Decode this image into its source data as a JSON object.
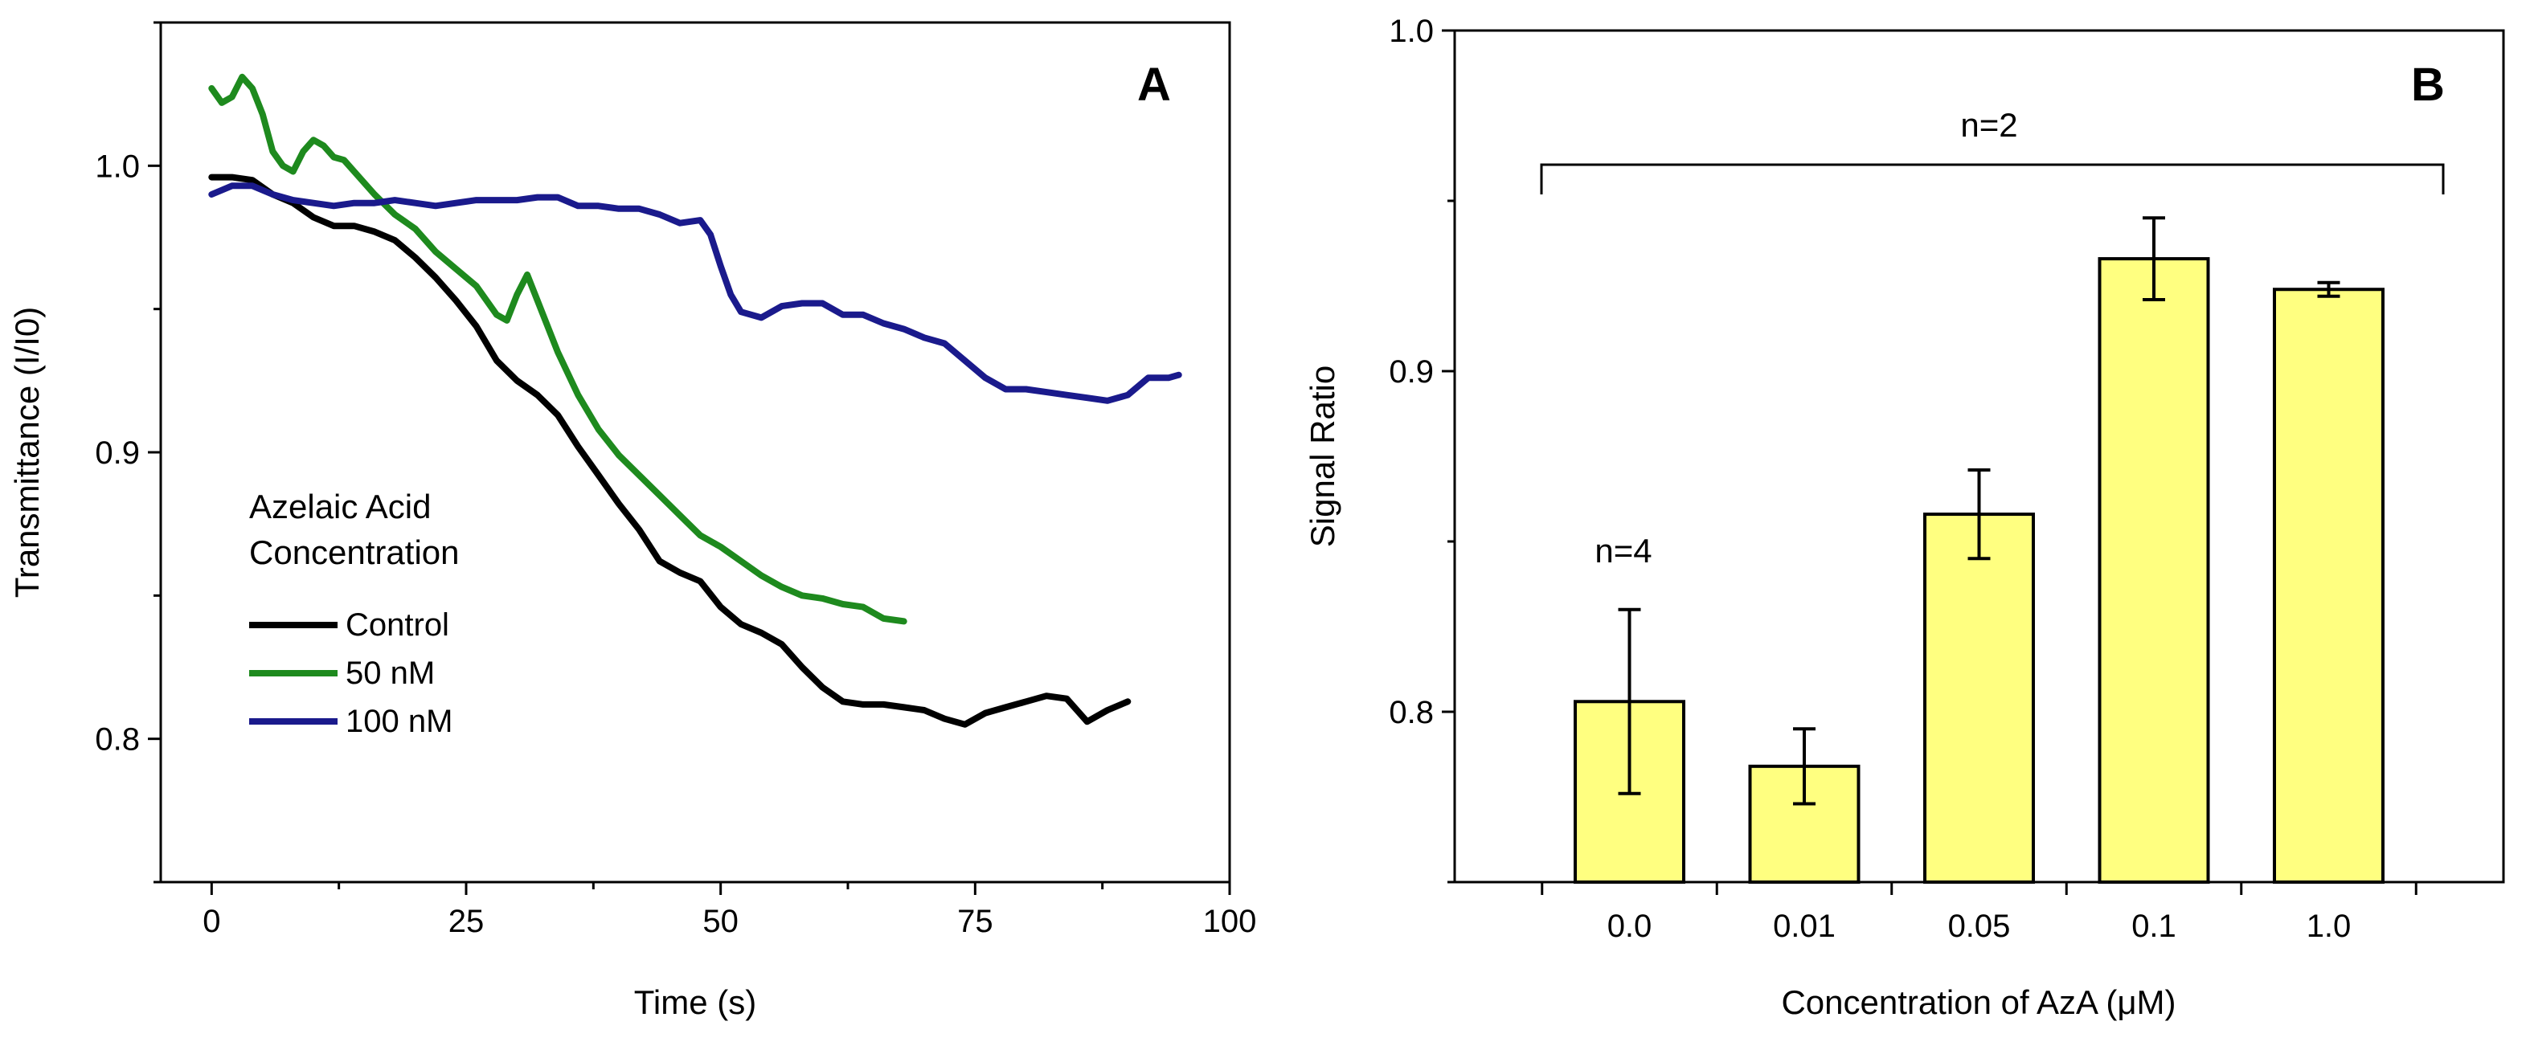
{
  "chart_data": [
    {
      "type": "line",
      "panel_label": "A",
      "title": "",
      "xlabel": "Time (s)",
      "ylabel": "Transmittance (I/I0)",
      "xlim": [
        -5,
        100
      ],
      "ylim": [
        0.75,
        1.05
      ],
      "xticks": [
        0,
        25,
        50,
        75,
        100
      ],
      "xtick_labels": [
        "0",
        "25",
        "50",
        "75",
        "100"
      ],
      "yticks": [
        0.8,
        0.9,
        1.0
      ],
      "ytick_labels": [
        "0.8",
        "0.9",
        "1.0"
      ],
      "grid": false,
      "legend": {
        "position": "center-left",
        "title_lines": [
          "Azelaic Acid",
          "Concentration"
        ],
        "entries": [
          "Control",
          "50 nM",
          "100 nM"
        ]
      },
      "series": [
        {
          "name": "Control",
          "color": "#000000",
          "points": [
            [
              0,
              0.996
            ],
            [
              2,
              0.996
            ],
            [
              4,
              0.995
            ],
            [
              6,
              0.99
            ],
            [
              8,
              0.987
            ],
            [
              10,
              0.982
            ],
            [
              12,
              0.979
            ],
            [
              14,
              0.979
            ],
            [
              16,
              0.977
            ],
            [
              18,
              0.974
            ],
            [
              20,
              0.968
            ],
            [
              22,
              0.961
            ],
            [
              24,
              0.953
            ],
            [
              26,
              0.944
            ],
            [
              28,
              0.932
            ],
            [
              30,
              0.925
            ],
            [
              32,
              0.92
            ],
            [
              34,
              0.913
            ],
            [
              36,
              0.902
            ],
            [
              38,
              0.892
            ],
            [
              40,
              0.882
            ],
            [
              42,
              0.873
            ],
            [
              44,
              0.862
            ],
            [
              46,
              0.858
            ],
            [
              48,
              0.855
            ],
            [
              50,
              0.846
            ],
            [
              52,
              0.84
            ],
            [
              54,
              0.837
            ],
            [
              56,
              0.833
            ],
            [
              58,
              0.825
            ],
            [
              60,
              0.818
            ],
            [
              62,
              0.813
            ],
            [
              64,
              0.812
            ],
            [
              66,
              0.812
            ],
            [
              68,
              0.811
            ],
            [
              70,
              0.81
            ],
            [
              72,
              0.807
            ],
            [
              74,
              0.805
            ],
            [
              76,
              0.809
            ],
            [
              78,
              0.811
            ],
            [
              80,
              0.813
            ],
            [
              82,
              0.815
            ],
            [
              84,
              0.814
            ],
            [
              86,
              0.806
            ],
            [
              88,
              0.81
            ],
            [
              90,
              0.813
            ]
          ]
        },
        {
          "name": "50 nM",
          "color": "#1e8a1e",
          "points": [
            [
              0,
              1.027
            ],
            [
              1,
              1.022
            ],
            [
              2,
              1.024
            ],
            [
              3,
              1.031
            ],
            [
              4,
              1.027
            ],
            [
              5,
              1.018
            ],
            [
              6,
              1.005
            ],
            [
              7,
              1.0
            ],
            [
              8,
              0.998
            ],
            [
              9,
              1.005
            ],
            [
              10,
              1.009
            ],
            [
              11,
              1.007
            ],
            [
              12,
              1.003
            ],
            [
              13,
              1.002
            ],
            [
              14,
              0.998
            ],
            [
              16,
              0.99
            ],
            [
              18,
              0.983
            ],
            [
              20,
              0.978
            ],
            [
              22,
              0.97
            ],
            [
              24,
              0.964
            ],
            [
              26,
              0.958
            ],
            [
              28,
              0.948
            ],
            [
              29,
              0.946
            ],
            [
              30,
              0.955
            ],
            [
              31,
              0.962
            ],
            [
              32,
              0.953
            ],
            [
              34,
              0.935
            ],
            [
              36,
              0.92
            ],
            [
              38,
              0.908
            ],
            [
              40,
              0.899
            ],
            [
              42,
              0.892
            ],
            [
              44,
              0.885
            ],
            [
              46,
              0.878
            ],
            [
              48,
              0.871
            ],
            [
              50,
              0.867
            ],
            [
              52,
              0.862
            ],
            [
              54,
              0.857
            ],
            [
              56,
              0.853
            ],
            [
              58,
              0.85
            ],
            [
              60,
              0.849
            ],
            [
              62,
              0.847
            ],
            [
              64,
              0.846
            ],
            [
              66,
              0.842
            ],
            [
              68,
              0.841
            ]
          ]
        },
        {
          "name": "100 nM",
          "color": "#1a1a8c",
          "points": [
            [
              0,
              0.99
            ],
            [
              2,
              0.993
            ],
            [
              4,
              0.993
            ],
            [
              6,
              0.99
            ],
            [
              8,
              0.988
            ],
            [
              10,
              0.987
            ],
            [
              12,
              0.986
            ],
            [
              14,
              0.987
            ],
            [
              16,
              0.987
            ],
            [
              18,
              0.988
            ],
            [
              20,
              0.987
            ],
            [
              22,
              0.986
            ],
            [
              24,
              0.987
            ],
            [
              26,
              0.988
            ],
            [
              28,
              0.988
            ],
            [
              30,
              0.988
            ],
            [
              32,
              0.989
            ],
            [
              34,
              0.989
            ],
            [
              36,
              0.986
            ],
            [
              38,
              0.986
            ],
            [
              40,
              0.985
            ],
            [
              42,
              0.985
            ],
            [
              44,
              0.983
            ],
            [
              46,
              0.98
            ],
            [
              48,
              0.981
            ],
            [
              49,
              0.976
            ],
            [
              50,
              0.965
            ],
            [
              51,
              0.955
            ],
            [
              52,
              0.949
            ],
            [
              54,
              0.947
            ],
            [
              56,
              0.951
            ],
            [
              58,
              0.952
            ],
            [
              60,
              0.952
            ],
            [
              62,
              0.948
            ],
            [
              64,
              0.948
            ],
            [
              66,
              0.945
            ],
            [
              68,
              0.943
            ],
            [
              70,
              0.94
            ],
            [
              72,
              0.938
            ],
            [
              74,
              0.932
            ],
            [
              76,
              0.926
            ],
            [
              78,
              0.922
            ],
            [
              80,
              0.922
            ],
            [
              82,
              0.921
            ],
            [
              84,
              0.92
            ],
            [
              86,
              0.919
            ],
            [
              88,
              0.918
            ],
            [
              90,
              0.92
            ],
            [
              92,
              0.926
            ],
            [
              94,
              0.926
            ],
            [
              95,
              0.927
            ]
          ]
        }
      ]
    },
    {
      "type": "bar",
      "panel_label": "B",
      "title": "",
      "xlabel": "Concentration of AzA (μM)",
      "ylabel": "Signal Ratio",
      "categories": [
        "0.0",
        "0.01",
        "0.05",
        "0.1",
        "1.0"
      ],
      "values": [
        0.803,
        0.784,
        0.858,
        0.933,
        0.924
      ],
      "errors": [
        0.027,
        0.011,
        0.013,
        0.012,
        0.002
      ],
      "bar_color": "#ffff80",
      "ylim": [
        0.75,
        1.0
      ],
      "yticks": [
        0.8,
        0.9,
        1.0
      ],
      "ytick_labels": [
        "0.8",
        "0.9",
        "1.0"
      ],
      "grid": false,
      "annotations": [
        {
          "text": "n=4",
          "applies_to": [
            "0.0"
          ]
        },
        {
          "text": "n=2",
          "applies_to": [
            "0.01",
            "0.05",
            "0.1",
            "1.0"
          ]
        }
      ]
    }
  ]
}
